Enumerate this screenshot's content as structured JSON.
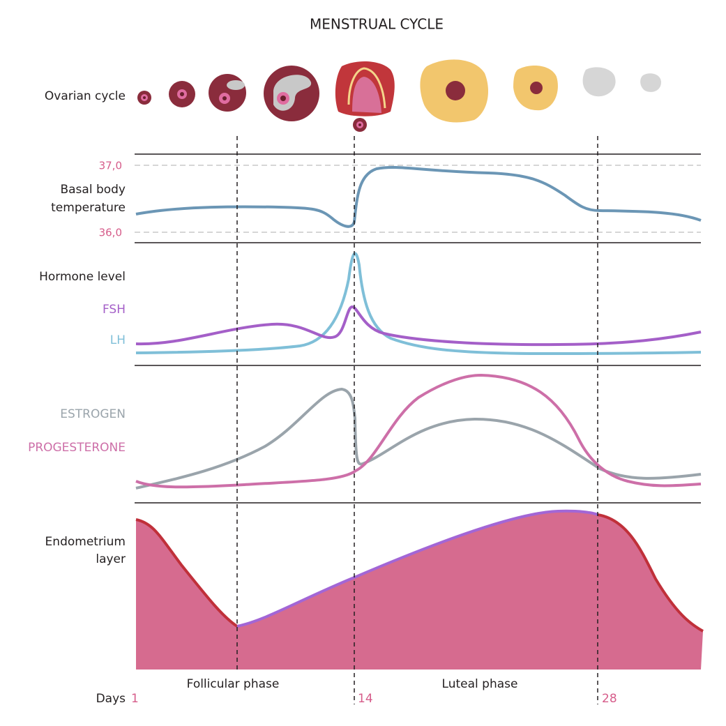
{
  "title": "MENSTRUAL CYCLE",
  "rows": {
    "ovarian": "Ovarian cycle",
    "temperature": [
      "Basal body",
      "temperature"
    ],
    "temp_high": "37,0",
    "temp_low": "36,0",
    "hormone": "Hormone level",
    "fsh": "FSH",
    "lh": "LH",
    "estrogen": "ESTROGEN",
    "progesterone": "PROGESTERONE",
    "endometrium": [
      "Endometrium",
      "layer"
    ]
  },
  "phases": [
    "Follicular phase",
    "Luteal phase"
  ],
  "days": {
    "label": "Days",
    "marks": [
      "1",
      "14",
      "28"
    ]
  }
}
